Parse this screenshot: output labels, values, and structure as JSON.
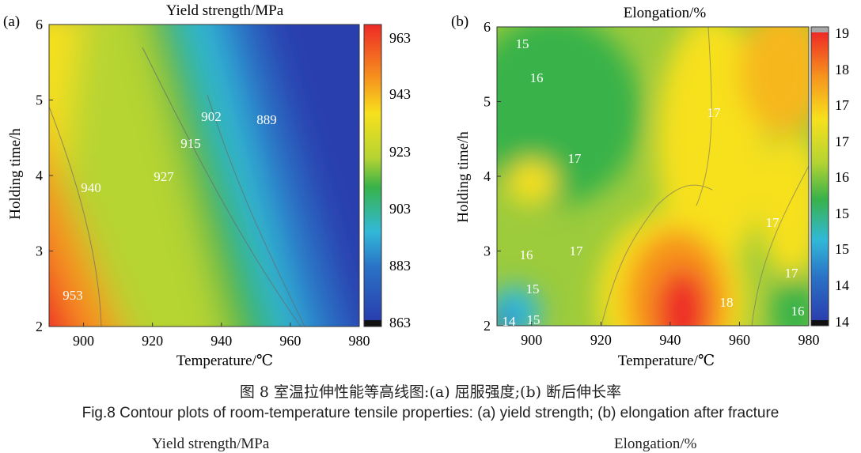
{
  "panels": [
    {
      "panel_label": "(a)",
      "title": "Yield strength/MPa",
      "colorbar_ticks": [
        "963",
        "943",
        "923",
        "903",
        "883",
        "863"
      ],
      "contour_labels": [
        "902",
        "889",
        "915",
        "927",
        "940",
        "953"
      ]
    },
    {
      "panel_label": "(b)",
      "title": "Elongation/%",
      "colorbar_ticks": [
        "19",
        "18",
        "17",
        "17",
        "16",
        "15",
        "15",
        "14",
        "14"
      ],
      "contour_labels": [
        "15",
        "16",
        "17",
        "17",
        "17",
        "16",
        "17",
        "17",
        "15",
        "18",
        "16",
        "14",
        "15"
      ]
    }
  ],
  "caption_cn": "图 8 室温拉伸性能等高线图:(a) 屈服强度;(b) 断后伸长率",
  "caption_en": "Fig.8  Contour plots of room-temperature tensile properties: (a) yield strength; (b) elongation after fracture",
  "cutoff_titles": [
    "Yield strength/MPa",
    "Elongation/%"
  ],
  "chart_data": [
    {
      "type": "heatmap",
      "title": "Yield strength/MPa",
      "xlabel": "Temperature/℃",
      "ylabel": "Holding time/h",
      "xlim": [
        890,
        980
      ],
      "ylim": [
        2,
        6
      ],
      "x_ticks": [
        900,
        920,
        940,
        960,
        980
      ],
      "y_ticks": [
        2,
        3,
        4,
        5,
        6
      ],
      "colorbar_range": [
        863,
        963
      ],
      "colors": {
        "low": "#2a3fae",
        "mid": "#38b24a",
        "high": "#ee2a26"
      },
      "contours": [
        {
          "value": 953,
          "x": 897,
          "y": 2.45
        },
        {
          "value": 940,
          "x": 898,
          "y": 3.85
        },
        {
          "value": 927,
          "x": 919,
          "y": 3.95
        },
        {
          "value": 915,
          "x": 927,
          "y": 4.45
        },
        {
          "value": 902,
          "x": 934,
          "y": 4.75
        },
        {
          "value": 889,
          "x": 952,
          "y": 4.73
        }
      ]
    },
    {
      "type": "heatmap",
      "title": "Elongation/%",
      "xlabel": "Temperature/℃",
      "ylabel": "Holding time/h",
      "xlim": [
        890,
        980
      ],
      "ylim": [
        2,
        6
      ],
      "x_ticks": [
        900,
        920,
        940,
        960,
        980
      ],
      "y_ticks": [
        2,
        3,
        4,
        5,
        6
      ],
      "colorbar_range": [
        14,
        19
      ],
      "contours": [
        {
          "value": 15,
          "x": 895,
          "y": 5.75
        },
        {
          "value": 16,
          "x": 899,
          "y": 5.32
        },
        {
          "value": 17,
          "x": 912,
          "y": 4.25
        },
        {
          "value": 17,
          "x": 951,
          "y": 4.85
        },
        {
          "value": 17,
          "x": 972,
          "y": 3.45
        },
        {
          "value": 16,
          "x": 897,
          "y": 2.99
        },
        {
          "value": 17,
          "x": 911,
          "y": 3.04
        },
        {
          "value": 17,
          "x": 976,
          "y": 2.77
        },
        {
          "value": 15,
          "x": 899,
          "y": 2.55
        },
        {
          "value": 18,
          "x": 958,
          "y": 2.34
        },
        {
          "value": 16,
          "x": 974,
          "y": 2.22
        },
        {
          "value": 14,
          "x": 893,
          "y": 2.09
        },
        {
          "value": 15,
          "x": 900,
          "y": 2.11
        }
      ]
    }
  ]
}
